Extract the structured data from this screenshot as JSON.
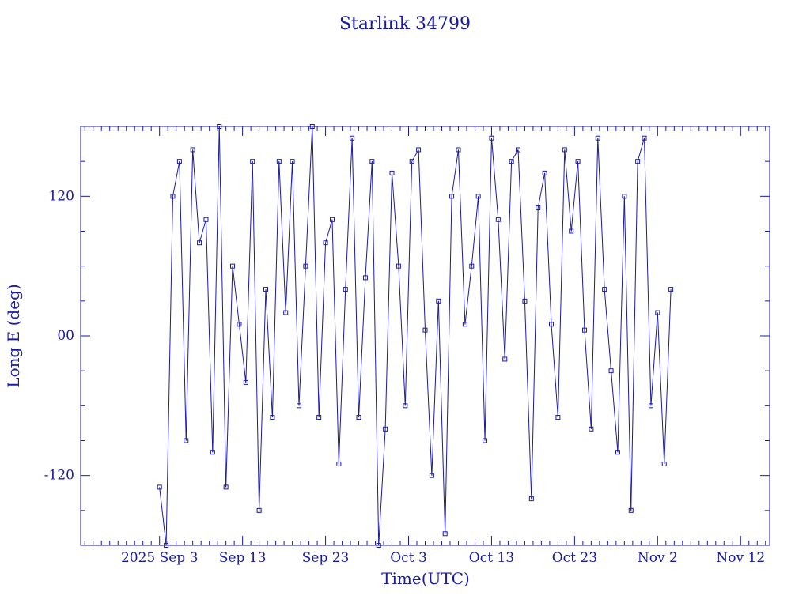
{
  "chart_data": {
    "type": "line",
    "title": "Starlink 34799",
    "xlabel": "Time(UTC)",
    "ylabel": "Long E (deg)",
    "x_tick_labels": [
      "2025 Sep  3",
      "Sep 13",
      "Sep 23",
      "Oct  3",
      "Oct 13",
      "Oct 23",
      "Nov  2",
      "Nov 12"
    ],
    "y_tick_labels": [
      "-120",
      "00",
      "120"
    ],
    "ylim": [
      -180,
      180
    ],
    "y_ticks": [
      -120,
      0,
      120
    ],
    "xlim_days": [
      -9.5,
      73.5
    ],
    "x_unit": "days since 2025 Sep 3",
    "grid": false,
    "line_color": "#1a1aa6",
    "series": [
      {
        "name": "",
        "x_days": [
          0.0,
          0.8,
          1.6,
          2.4,
          3.2,
          4.0,
          4.8,
          5.6,
          6.4,
          7.2,
          8.0,
          8.8,
          9.6,
          10.4,
          11.2,
          12.0,
          12.8,
          13.6,
          14.4,
          15.2,
          16.0,
          16.8,
          17.6,
          18.4,
          19.2,
          20.0,
          20.8,
          21.6,
          22.4,
          23.2,
          24.0,
          24.8,
          25.6,
          26.4,
          27.2,
          28.0,
          28.8,
          29.6,
          30.4,
          31.2,
          32.0,
          32.8,
          33.6,
          34.4,
          35.2,
          36.0,
          36.8,
          37.6,
          38.4,
          39.2,
          40.0,
          40.8,
          41.6,
          42.4,
          43.2,
          44.0,
          44.8,
          45.6,
          46.4,
          47.2,
          48.0,
          48.8,
          49.6,
          50.4,
          51.2,
          52.0,
          52.8,
          53.6,
          54.4,
          55.2,
          56.0,
          56.8,
          57.6,
          58.4,
          59.2,
          60.0,
          60.8,
          61.6
        ],
        "long_deg": [
          -130,
          -180,
          120,
          150,
          -90,
          160,
          80,
          100,
          -100,
          180,
          -130,
          60,
          10,
          -40,
          150,
          -150,
          40,
          -70,
          150,
          20,
          150,
          -60,
          60,
          180,
          -70,
          80,
          100,
          -110,
          40,
          170,
          -70,
          50,
          150,
          -180,
          -80,
          140,
          60,
          -60,
          150,
          160,
          5,
          -120,
          30,
          -170,
          120,
          160,
          10,
          60,
          120,
          -90,
          170,
          100,
          -20,
          150,
          160,
          30,
          -140,
          110,
          140,
          10,
          -70,
          160,
          90,
          150,
          5,
          -80,
          170,
          40,
          -30,
          -100,
          120,
          -150,
          150,
          170,
          -60,
          20,
          -110,
          40
        ]
      }
    ]
  }
}
